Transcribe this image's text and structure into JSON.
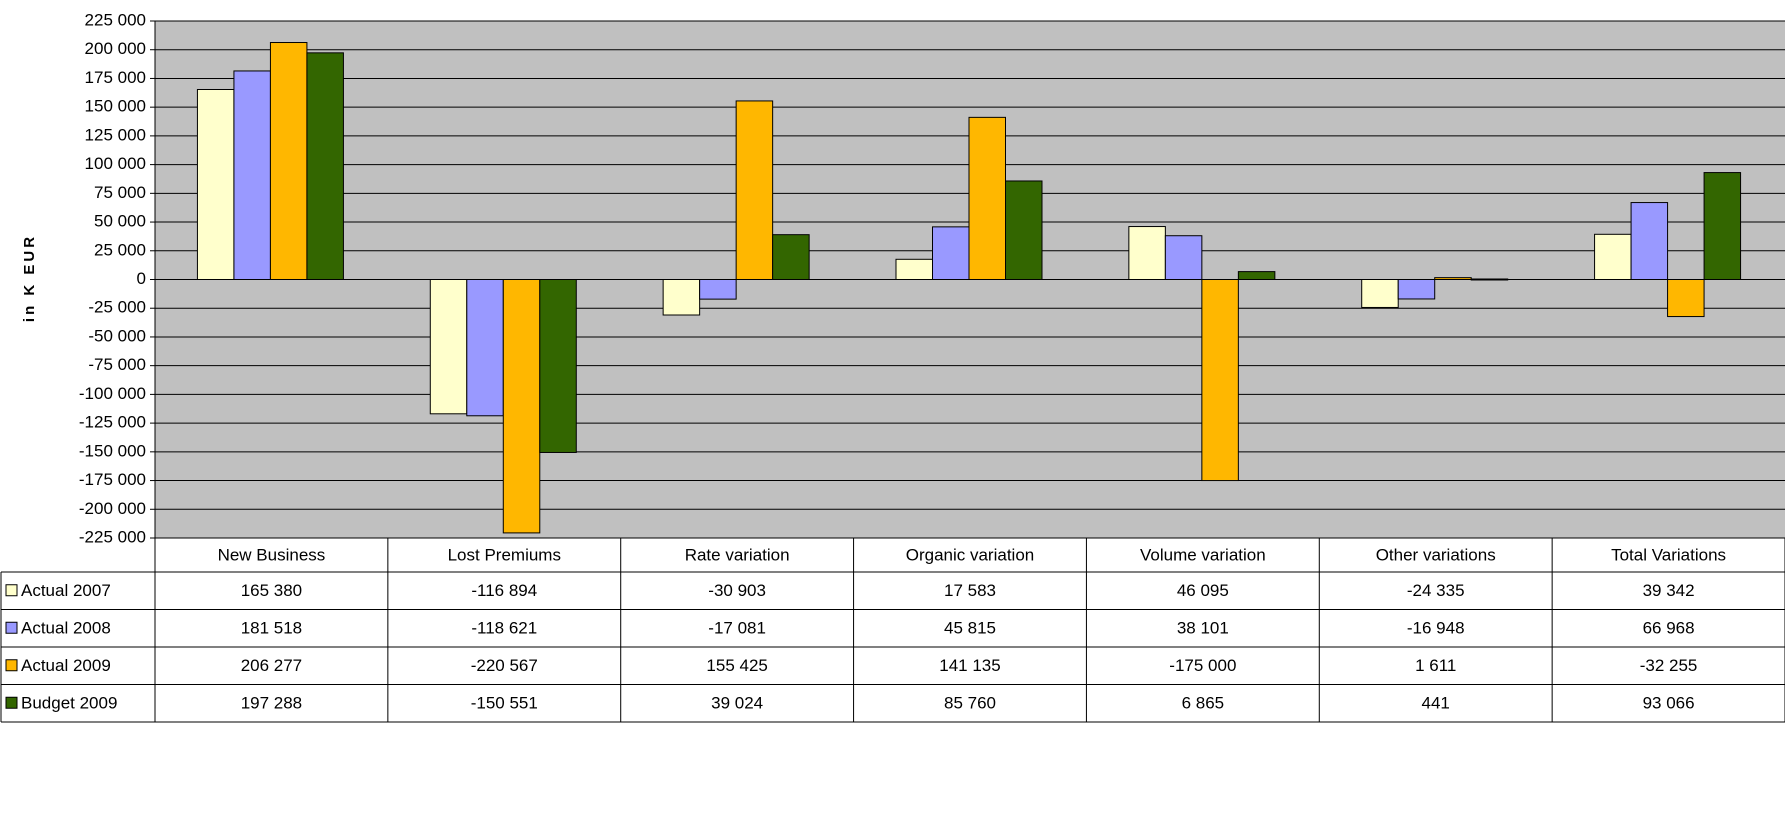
{
  "chart_data": {
    "type": "bar",
    "ylabel": "in K EUR",
    "ylim": [
      -225000,
      225000
    ],
    "ytick_step": 25000,
    "grid": true,
    "legend_placement": "data-table-left",
    "plot_background": "#c0c0c0",
    "categories": [
      "New Business",
      "Lost Premiums",
      "Rate variation",
      "Organic variation",
      "Volume variation",
      "Other variations",
      "Total Variations"
    ],
    "yticks": [
      "225 000",
      "200 000",
      "175 000",
      "150 000",
      "125 000",
      "100 000",
      "75 000",
      "50 000",
      "25 000",
      "0",
      "-25 000",
      "-50 000",
      "-75 000",
      "-100 000",
      "-125 000",
      "-150 000",
      "-175 000",
      "-200 000",
      "-225 000"
    ],
    "series": [
      {
        "name": "Actual 2007",
        "color": "#ffffcc",
        "values": [
          165380,
          -116894,
          -30903,
          17583,
          46095,
          -24335,
          39342
        ],
        "labels": [
          "165 380",
          "-116 894",
          "-30 903",
          "17 583",
          "46 095",
          "-24 335",
          "39 342"
        ]
      },
      {
        "name": "Actual 2008",
        "color": "#9999ff",
        "values": [
          181518,
          -118621,
          -17081,
          45815,
          38101,
          -16948,
          66968
        ],
        "labels": [
          "181 518",
          "-118 621",
          "-17 081",
          "45 815",
          "38 101",
          "-16 948",
          "66 968"
        ]
      },
      {
        "name": "Actual 2009",
        "color": "#ffb700",
        "values": [
          206277,
          -220567,
          155425,
          141135,
          -175000,
          1611,
          -32255
        ],
        "labels": [
          "206 277",
          "-220 567",
          "155 425",
          "141 135",
          "-175 000",
          "1 611",
          "-32 255"
        ]
      },
      {
        "name": "Budget 2009",
        "color": "#336600",
        "values": [
          197288,
          -150551,
          39024,
          85760,
          6865,
          441,
          93066
        ],
        "labels": [
          "197 288",
          "-150 551",
          "39 024",
          "85 760",
          "6 865",
          "441",
          "93 066"
        ]
      }
    ]
  }
}
